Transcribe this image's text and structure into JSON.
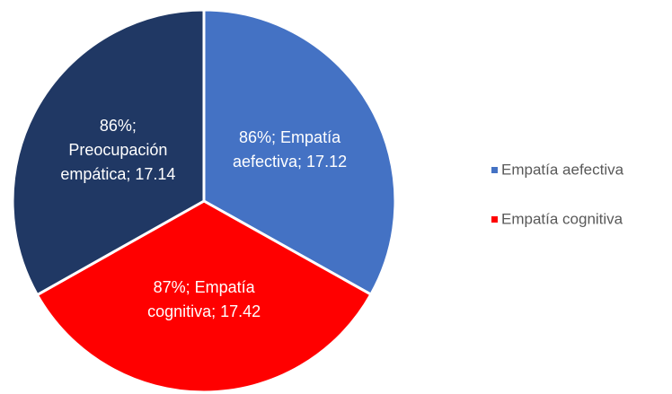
{
  "chart_data": {
    "type": "pie",
    "categories": [
      "Empatía aefectiva",
      "Empatía cognitiva",
      "Preocupación empática"
    ],
    "values": [
      17.12,
      17.42,
      17.14
    ],
    "value_labels": [
      [
        "86%; Empatía",
        "aefectiva; 17.12"
      ],
      [
        "87%; Empatía",
        "cognitiva; 17.42"
      ],
      [
        "86%;",
        "Preocupación",
        "empática; 17.14"
      ]
    ],
    "colors": [
      "#4472c4",
      "#ff0000",
      "#203864"
    ],
    "legend": [
      {
        "name": "Empatía aefectiva",
        "color": "#4472c4"
      },
      {
        "name": "Empatía cognitiva",
        "color": "#ff0000"
      }
    ],
    "legend_position": "right"
  }
}
